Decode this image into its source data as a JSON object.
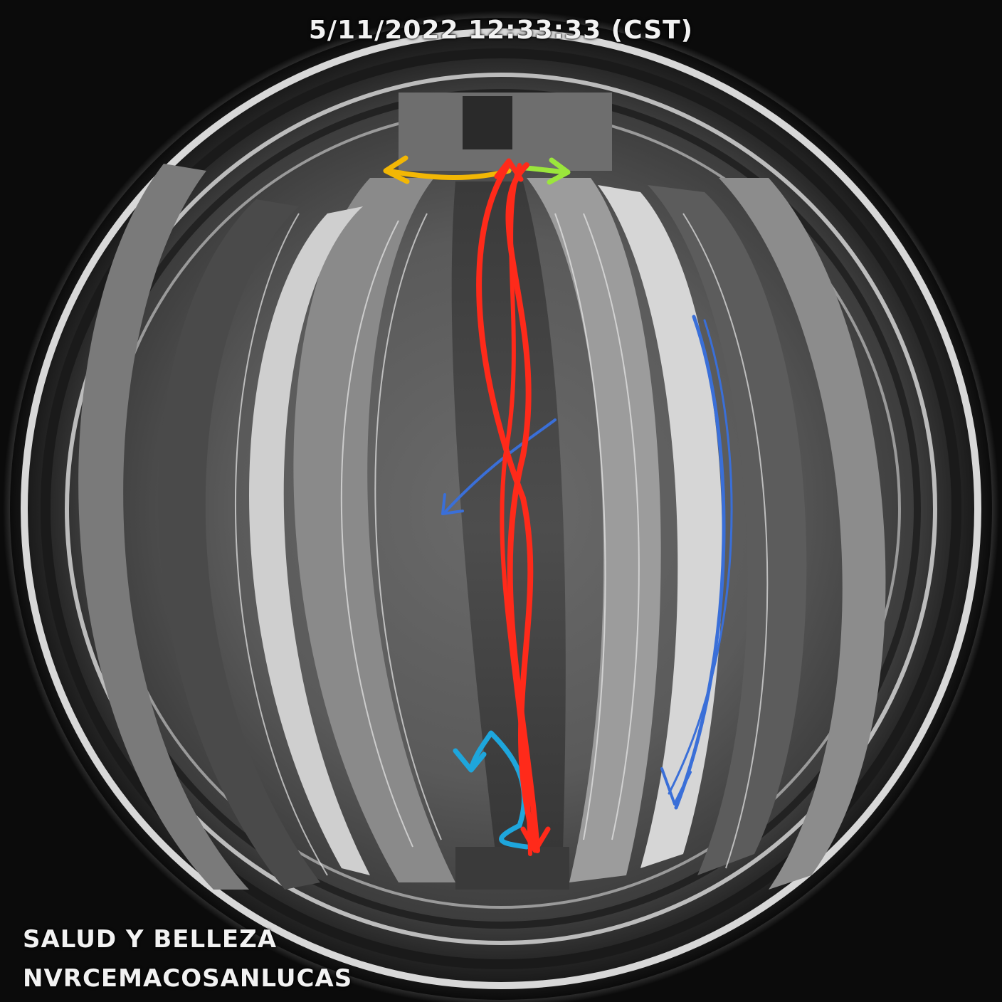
{
  "camera": {
    "timestamp": "5/11/2022 12:33:33 (CST)",
    "zone_label": "SALUD Y BELLEZA",
    "nvr_name": "NVRCEMACOSANLUCAS"
  },
  "overlay": {
    "colors": {
      "red_path": "#ff2a1a",
      "yellow_arrow": "#f2b705",
      "green_arrow": "#9be63c",
      "blue_path": "#3a6fd8",
      "cyan_path": "#1ea6dc"
    }
  }
}
